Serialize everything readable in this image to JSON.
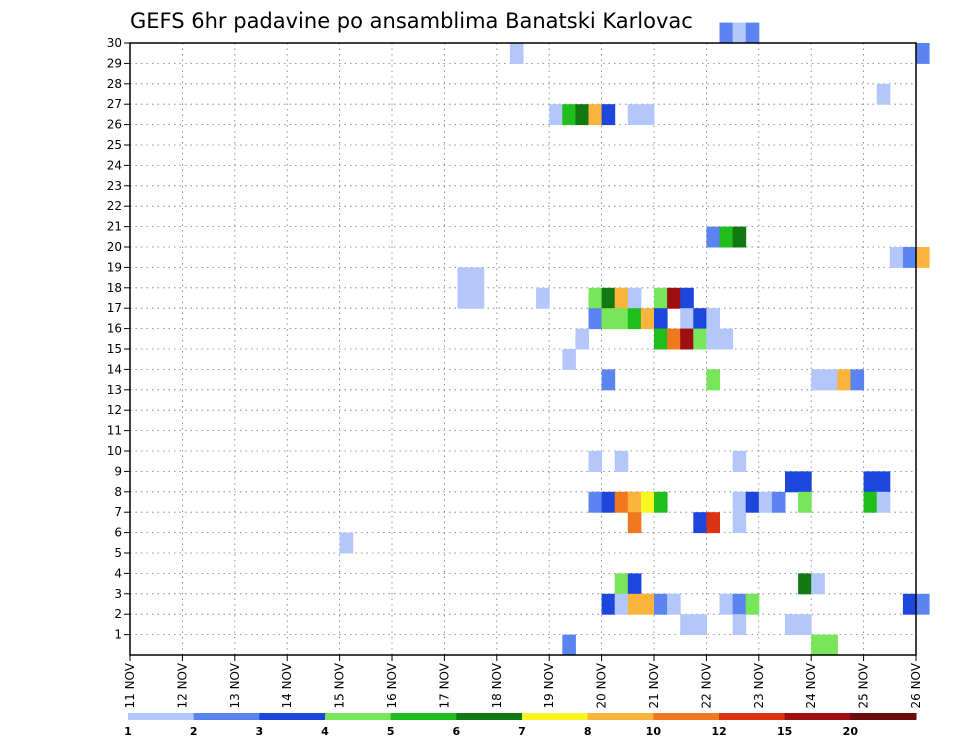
{
  "chart_data": {
    "type": "heatmap",
    "title": "GEFS 6hr padavine po ansamblima Banatski Karlovac",
    "y_ticks": [
      "1",
      "2",
      "3",
      "4",
      "5",
      "6",
      "7",
      "8",
      "9",
      "10",
      "11",
      "12",
      "13",
      "14",
      "15",
      "16",
      "17",
      "18",
      "19",
      "20",
      "21",
      "22",
      "23",
      "24",
      "25",
      "26",
      "27",
      "28",
      "29",
      "30"
    ],
    "x_ticks": [
      "11 NOV",
      "12 NOV",
      "13 NOV",
      "14 NOV",
      "15 NOV",
      "16 NOV",
      "17 NOV",
      "18 NOV",
      "19 NOV",
      "20 NOV",
      "21 NOV",
      "22 NOV",
      "23 NOV",
      "24 NOV",
      "25 NOV",
      "26 NOV"
    ],
    "xlim_days": [
      11,
      26
    ],
    "ylim_members": [
      0,
      30
    ],
    "step_hours": 6,
    "grid": true,
    "legend": {
      "placement": "bottom",
      "colors": [
        "#b4c7fa",
        "#5b84f0",
        "#1d46dc",
        "#78e65a",
        "#1fbe1c",
        "#127812",
        "#faf51e",
        "#fab43c",
        "#f0781e",
        "#dc3214",
        "#a00f0f",
        "#6e0a0a"
      ],
      "labels": [
        "1",
        "2",
        "3",
        "4",
        "5",
        "6",
        "7",
        "8",
        "10",
        "12",
        "15",
        "20"
      ]
    },
    "cells": [
      {
        "member": 30,
        "step": 45,
        "level": 2
      },
      {
        "member": 30,
        "step": 46,
        "level": 1
      },
      {
        "member": 30,
        "step": 47,
        "level": 2
      },
      {
        "member": 29,
        "step": 29,
        "level": 1
      },
      {
        "member": 29,
        "step": 60,
        "level": 2
      },
      {
        "member": 27,
        "step": 57,
        "level": 1
      },
      {
        "member": 26,
        "step": 32,
        "level": 1
      },
      {
        "member": 26,
        "step": 33,
        "level": 5
      },
      {
        "member": 26,
        "step": 34,
        "level": 6
      },
      {
        "member": 26,
        "step": 35,
        "level": 8
      },
      {
        "member": 26,
        "step": 36,
        "level": 3
      },
      {
        "member": 26,
        "step": 38,
        "level": 1
      },
      {
        "member": 26,
        "step": 39,
        "level": 1
      },
      {
        "member": 20,
        "step": 44,
        "level": 2
      },
      {
        "member": 20,
        "step": 45,
        "level": 5
      },
      {
        "member": 20,
        "step": 46,
        "level": 6
      },
      {
        "member": 19,
        "step": 58,
        "level": 1
      },
      {
        "member": 19,
        "step": 59,
        "level": 2
      },
      {
        "member": 19,
        "step": 60,
        "level": 8
      },
      {
        "member": 18,
        "step": 25,
        "level": 1
      },
      {
        "member": 18,
        "step": 26,
        "level": 1
      },
      {
        "member": 17,
        "step": 25,
        "level": 1
      },
      {
        "member": 17,
        "step": 26,
        "level": 1
      },
      {
        "member": 17,
        "step": 31,
        "level": 1
      },
      {
        "member": 17,
        "step": 35,
        "level": 4
      },
      {
        "member": 17,
        "step": 36,
        "level": 6
      },
      {
        "member": 17,
        "step": 37,
        "level": 8
      },
      {
        "member": 17,
        "step": 38,
        "level": 1
      },
      {
        "member": 17,
        "step": 40,
        "level": 4
      },
      {
        "member": 17,
        "step": 41,
        "level": 11
      },
      {
        "member": 17,
        "step": 42,
        "level": 3
      },
      {
        "member": 16,
        "step": 35,
        "level": 2
      },
      {
        "member": 16,
        "step": 36,
        "level": 4
      },
      {
        "member": 16,
        "step": 37,
        "level": 4
      },
      {
        "member": 16,
        "step": 38,
        "level": 5
      },
      {
        "member": 16,
        "step": 39,
        "level": 8
      },
      {
        "member": 16,
        "step": 40,
        "level": 3
      },
      {
        "member": 16,
        "step": 42,
        "level": 1
      },
      {
        "member": 16,
        "step": 43,
        "level": 3
      },
      {
        "member": 16,
        "step": 44,
        "level": 1
      },
      {
        "member": 15,
        "step": 34,
        "level": 1
      },
      {
        "member": 15,
        "step": 40,
        "level": 5
      },
      {
        "member": 15,
        "step": 41,
        "level": 9
      },
      {
        "member": 15,
        "step": 42,
        "level": 11
      },
      {
        "member": 15,
        "step": 43,
        "level": 4
      },
      {
        "member": 15,
        "step": 44,
        "level": 1
      },
      {
        "member": 15,
        "step": 45,
        "level": 1
      },
      {
        "member": 14,
        "step": 33,
        "level": 1
      },
      {
        "member": 13,
        "step": 36,
        "level": 2
      },
      {
        "member": 13,
        "step": 44,
        "level": 4
      },
      {
        "member": 13,
        "step": 52,
        "level": 1
      },
      {
        "member": 13,
        "step": 53,
        "level": 1
      },
      {
        "member": 13,
        "step": 54,
        "level": 8
      },
      {
        "member": 13,
        "step": 55,
        "level": 2
      },
      {
        "member": 9,
        "step": 35,
        "level": 1
      },
      {
        "member": 9,
        "step": 37,
        "level": 1
      },
      {
        "member": 9,
        "step": 46,
        "level": 1
      },
      {
        "member": 8,
        "step": 50,
        "level": 3
      },
      {
        "member": 8,
        "step": 51,
        "level": 3
      },
      {
        "member": 8,
        "step": 56,
        "level": 3
      },
      {
        "member": 8,
        "step": 57,
        "level": 3
      },
      {
        "member": 7,
        "step": 35,
        "level": 2
      },
      {
        "member": 7,
        "step": 36,
        "level": 3
      },
      {
        "member": 7,
        "step": 37,
        "level": 9
      },
      {
        "member": 7,
        "step": 38,
        "level": 8
      },
      {
        "member": 7,
        "step": 39,
        "level": 7
      },
      {
        "member": 7,
        "step": 40,
        "level": 5
      },
      {
        "member": 7,
        "step": 46,
        "level": 1
      },
      {
        "member": 7,
        "step": 47,
        "level": 3
      },
      {
        "member": 7,
        "step": 48,
        "level": 1
      },
      {
        "member": 7,
        "step": 49,
        "level": 2
      },
      {
        "member": 7,
        "step": 51,
        "level": 4
      },
      {
        "member": 7,
        "step": 56,
        "level": 5
      },
      {
        "member": 7,
        "step": 57,
        "level": 1
      },
      {
        "member": 6,
        "step": 38,
        "level": 9
      },
      {
        "member": 6,
        "step": 43,
        "level": 3
      },
      {
        "member": 6,
        "step": 44,
        "level": 10
      },
      {
        "member": 6,
        "step": 46,
        "level": 1
      },
      {
        "member": 5,
        "step": 16,
        "level": 1
      },
      {
        "member": 3,
        "step": 37,
        "level": 4
      },
      {
        "member": 3,
        "step": 38,
        "level": 3
      },
      {
        "member": 3,
        "step": 51,
        "level": 6
      },
      {
        "member": 3,
        "step": 52,
        "level": 1
      },
      {
        "member": 2,
        "step": 36,
        "level": 3
      },
      {
        "member": 2,
        "step": 37,
        "level": 1
      },
      {
        "member": 2,
        "step": 38,
        "level": 8
      },
      {
        "member": 2,
        "step": 39,
        "level": 8
      },
      {
        "member": 2,
        "step": 40,
        "level": 2
      },
      {
        "member": 2,
        "step": 41,
        "level": 1
      },
      {
        "member": 2,
        "step": 45,
        "level": 1
      },
      {
        "member": 2,
        "step": 46,
        "level": 2
      },
      {
        "member": 2,
        "step": 47,
        "level": 4
      },
      {
        "member": 2,
        "step": 59,
        "level": 3
      },
      {
        "member": 2,
        "step": 60,
        "level": 2
      },
      {
        "member": 1,
        "step": 42,
        "level": 1
      },
      {
        "member": 1,
        "step": 43,
        "level": 1
      },
      {
        "member": 1,
        "step": 46,
        "level": 1
      },
      {
        "member": 1,
        "step": 50,
        "level": 1
      },
      {
        "member": 1,
        "step": 51,
        "level": 1
      },
      {
        "member": 0,
        "step": 33,
        "level": 2
      },
      {
        "member": 0,
        "step": 52,
        "level": 4
      },
      {
        "member": 0,
        "step": 53,
        "level": 4
      }
    ]
  }
}
